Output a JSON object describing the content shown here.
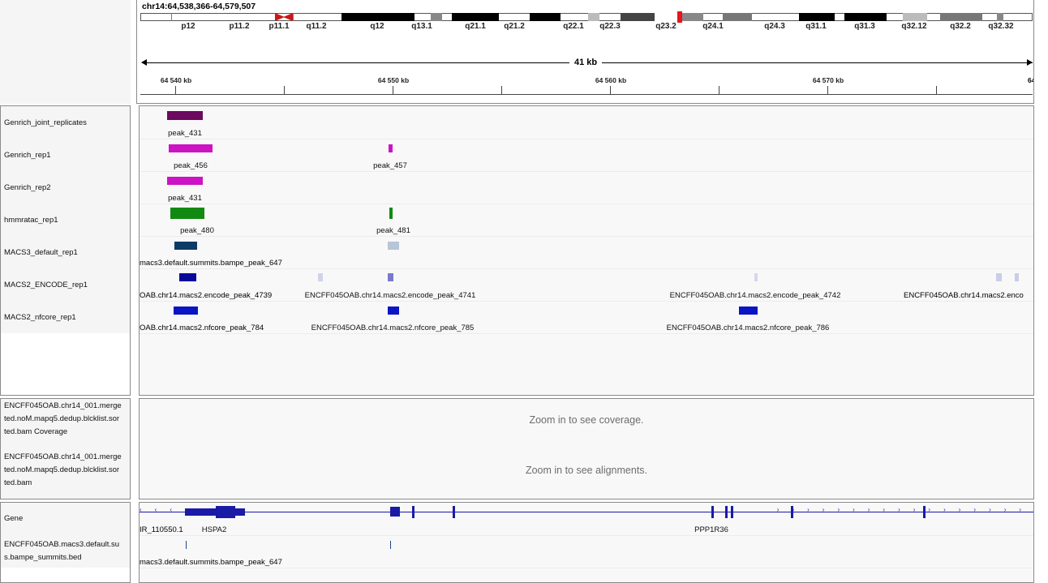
{
  "locus": "chr14:64,538,366-64,579,507",
  "span_label": "41 kb",
  "cytobands": [
    "p12",
    "p11.2",
    "p11.1",
    "q11.2",
    "q12",
    "q13.1",
    "q21.1",
    "q21.2",
    "q22.1",
    "q22.3",
    "q23.2",
    "q24.1",
    "q24.3",
    "q31.1",
    "q31.3",
    "q32.12",
    "q32.2",
    "q32.32"
  ],
  "ruler_ticks": [
    "64 540 kb",
    "64 550 kb",
    "64 560 kb",
    "64 570 kb",
    "64"
  ],
  "tracks": [
    {
      "name": "Genrich_joint_replicates",
      "color": "#6b0a5f",
      "labels": [
        "peak_431"
      ]
    },
    {
      "name": "Genrich_rep1",
      "color": "#cc14c4",
      "labels": [
        "peak_456",
        "peak_457"
      ]
    },
    {
      "name": "Genrich_rep2",
      "color": "#cc14c4",
      "labels": [
        "peak_431"
      ]
    },
    {
      "name": "hmmratac_rep1",
      "color": "#128a12",
      "labels": [
        "peak_480",
        "peak_481"
      ]
    },
    {
      "name": "MACS3_default_rep1",
      "color": "#0e3a66",
      "labels": [
        "macs3.default.summits.bampe_peak_647"
      ]
    },
    {
      "name": "MACS2_ENCODE_rep1",
      "color": "#0a0a9a",
      "labels": [
        "OAB.chr14.macs2.encode_peak_4739",
        "ENCFF045OAB.chr14.macs2.encode_peak_4741",
        "ENCFF045OAB.chr14.macs2.encode_peak_4742",
        "ENCFF045OAB.chr14.macs2.enco"
      ]
    },
    {
      "name": "MACS2_nfcore_rep1",
      "color": "#0a14c4",
      "labels": [
        "OAB.chr14.macs2.nfcore_peak_784",
        "ENCFF045OAB.chr14.macs2.nfcore_peak_785",
        "ENCFF045OAB.chr14.macs2.nfcore_peak_786"
      ]
    }
  ],
  "alignment": {
    "coverage_name": [
      "ENCFF045OAB.chr14_001.merge",
      "ted.noM.mapq5.dedup.blcklist.sor",
      "ted.bam Coverage"
    ],
    "bam_name": [
      "ENCFF045OAB.chr14_001.merge",
      "ted.noM.mapq5.dedup.blcklist.sor",
      "ted.bam"
    ],
    "coverage_msg": "Zoom in to see coverage.",
    "alignment_msg": "Zoom in to see alignments."
  },
  "bottom": {
    "gene_track": "Gene",
    "summits_name": [
      "ENCFF045OAB.macs3.default.su",
      "s.bampe_summits.bed"
    ],
    "gene_labels": [
      "IR_110550.1",
      "HSPA2",
      "PPP1R36"
    ],
    "summit_label": "macs3.default.summits.bampe_peak_647"
  },
  "colors": {
    "gene": "#1a1aa6",
    "highlight": "#e8141c"
  }
}
